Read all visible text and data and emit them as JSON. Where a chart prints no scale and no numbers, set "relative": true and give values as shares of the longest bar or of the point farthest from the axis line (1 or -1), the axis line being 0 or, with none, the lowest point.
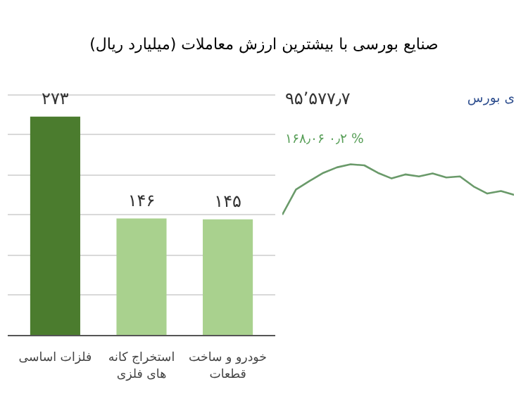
{
  "chart_data": [
    {
      "type": "bar",
      "title": "صنایع بورسی با بیشترین ارزش معاملات  (میلیارد ریال)",
      "categories": [
        "فلزات اساسی",
        "استخراج کانه های فلزی",
        "خودرو و ساخت قطعات"
      ],
      "values": [
        273,
        146,
        145
      ],
      "colors": [
        "#4b7c2e",
        "#a9d18e",
        "#a9d18e"
      ],
      "value_labels": [
        "۲۷۳",
        "۱۴۶",
        "۱۴۵"
      ],
      "grid": "y",
      "tick_labels": "x"
    },
    {
      "type": "line",
      "relative": true,
      "categories": [
        null,
        null,
        null,
        null,
        null,
        null,
        null,
        null,
        null,
        null,
        null,
        null,
        null,
        null,
        null,
        null,
        null,
        null
      ],
      "series": [
        {
          "color": "#6a9a6a",
          "values": [
            0,
            0.5,
            0.67,
            0.83,
            0.94,
            1,
            0.98,
            0.83,
            0.72,
            0.8,
            0.76,
            0.82,
            0.74,
            0.76,
            0.56,
            0.42,
            0.47,
            0.39
          ]
        }
      ],
      "annotations": [
        "۹۵٬۵۷۷٫۷",
        "۱۶۸٫۰۶  ۰٫۲ %",
        "ی بورس"
      ]
    }
  ]
}
